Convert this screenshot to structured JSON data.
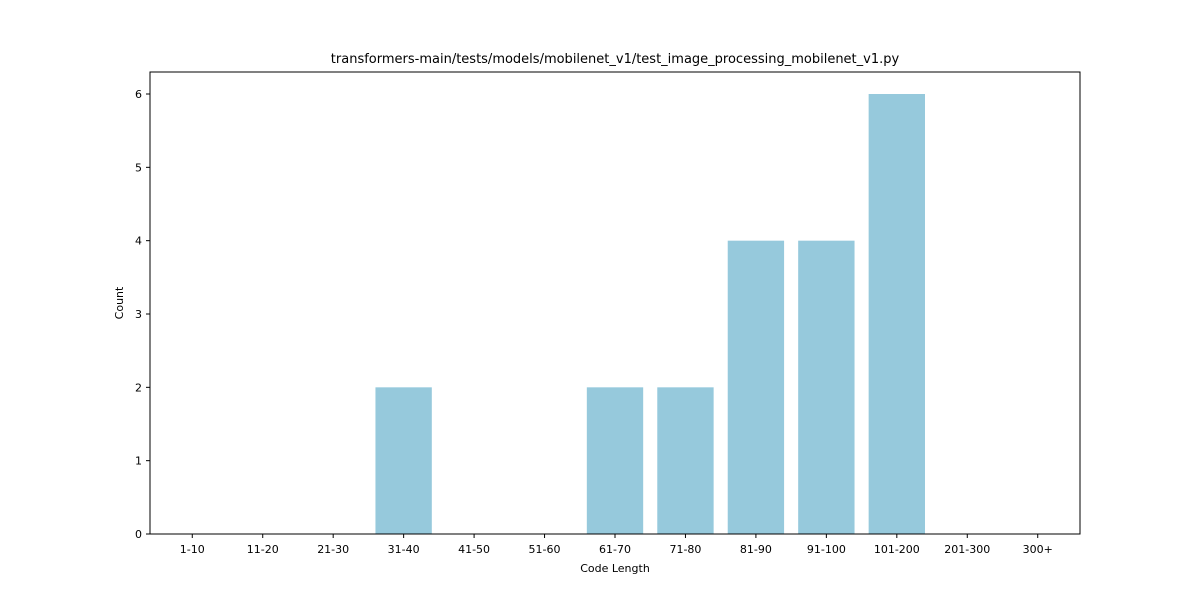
{
  "chart_data": {
    "type": "bar",
    "title": "transformers-main/tests/models/mobilenet_v1/test_image_processing_mobilenet_v1.py",
    "xlabel": "Code Length",
    "ylabel": "Count",
    "categories": [
      "1-10",
      "11-20",
      "21-30",
      "31-40",
      "41-50",
      "51-60",
      "61-70",
      "71-80",
      "81-90",
      "91-100",
      "101-200",
      "201-300",
      "300+"
    ],
    "values": [
      0,
      0,
      0,
      2,
      0,
      0,
      2,
      2,
      4,
      4,
      6,
      0,
      0
    ],
    "ylim": [
      0,
      6.3
    ],
    "yticks": [
      0,
      1,
      2,
      3,
      4,
      5,
      6
    ],
    "bar_color": "#96c9dc",
    "grid": false,
    "legend": false
  }
}
